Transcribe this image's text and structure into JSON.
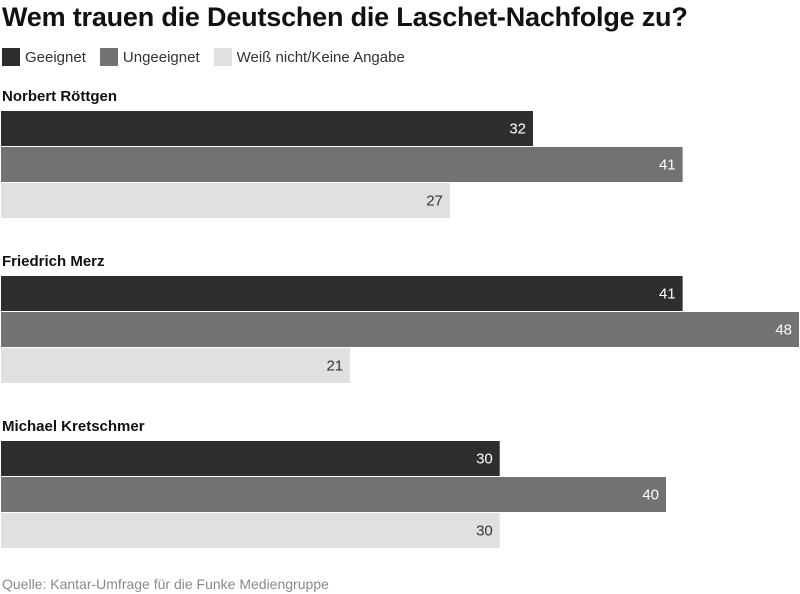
{
  "title": "Wem trauen die Deutschen die Laschet-Nachfolge zu?",
  "source": "Quelle: Kantar-Umfrage für die Funke Mediengruppe",
  "colors": {
    "Geeignet": "#2e2e2e",
    "Ungeeignet": "#727272",
    "Weiß nicht/Keine Angabe": "#e0e0e0",
    "label_dark_bg": "#ffffff",
    "label_light_bg": "#333333"
  },
  "chart_data": {
    "type": "bar",
    "orientation": "horizontal",
    "title": "Wem trauen die Deutschen die Laschet-Nachfolge zu?",
    "categories": [
      "Norbert Röttgen",
      "Friedrich Merz",
      "Michael Kretschmer"
    ],
    "series": [
      {
        "name": "Geeignet",
        "values": [
          32,
          41,
          30
        ]
      },
      {
        "name": "Ungeeignet",
        "values": [
          41,
          48,
          40
        ]
      },
      {
        "name": "Weiß nicht/Keine Angabe",
        "values": [
          27,
          21,
          30
        ]
      }
    ],
    "xlim": [
      0,
      48
    ],
    "grid": false,
    "legend_position": "top-left",
    "data_labels": true
  }
}
